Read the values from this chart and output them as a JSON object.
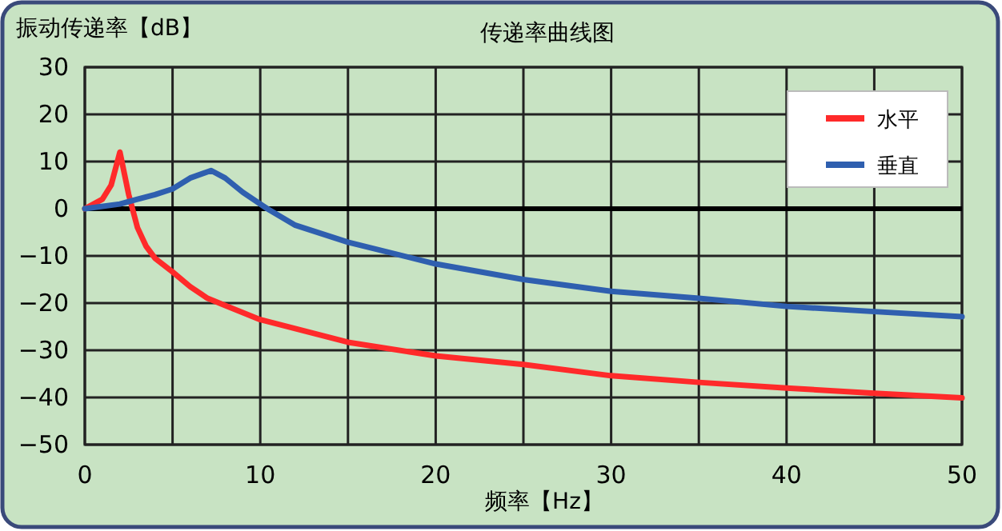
{
  "chart_data": {
    "type": "line",
    "title": "传递率曲线图",
    "xlabel": "频率【Hz】",
    "ylabel": "振动传递率【dB】",
    "xlim": [
      0,
      50
    ],
    "ylim": [
      -50,
      30
    ],
    "xticks": [
      0,
      {
        "value": 5,
        "label": null
      },
      10,
      {
        "value": 15,
        "label": null
      },
      20,
      {
        "value": 25,
        "label": null
      },
      30,
      {
        "value": 35,
        "label": null
      },
      40,
      {
        "value": 45,
        "label": null
      },
      50
    ],
    "yticks": [
      -50,
      -40,
      -30,
      -20,
      -10,
      0,
      10,
      20,
      30
    ],
    "grid": true,
    "legend": "top right",
    "marker": "none",
    "line_style": "solid",
    "ref_lines": [
      {
        "axis": "y",
        "value": 0,
        "color": "#000000"
      }
    ],
    "series": [
      {
        "name": "水平",
        "color": "#ff2a2a",
        "x": [
          0,
          1,
          1.5,
          2,
          2.5,
          3,
          3.5,
          4,
          5,
          6,
          7,
          8,
          10,
          15,
          20,
          25,
          30,
          35,
          40,
          45,
          50
        ],
        "values": [
          0,
          2,
          5,
          12,
          3,
          -4,
          -8,
          -10.5,
          -13.4,
          -16.5,
          -19,
          -20.5,
          -23.5,
          -28.3,
          -31.2,
          -33,
          -35.4,
          -36.8,
          -38,
          -39.1,
          -40.1
        ]
      },
      {
        "name": "垂直",
        "color": "#2f5faf",
        "x": [
          0,
          2,
          3,
          4,
          5,
          6,
          7.2,
          8,
          9,
          10.4,
          12,
          15,
          20,
          25,
          30,
          35,
          40,
          45,
          50
        ],
        "values": [
          0,
          1,
          2,
          3,
          4.2,
          6.5,
          8.1,
          6.5,
          3.5,
          0,
          -3.5,
          -7.1,
          -11.7,
          -15,
          -17.5,
          -19,
          -20.7,
          -21.8,
          -22.9
        ]
      }
    ]
  }
}
